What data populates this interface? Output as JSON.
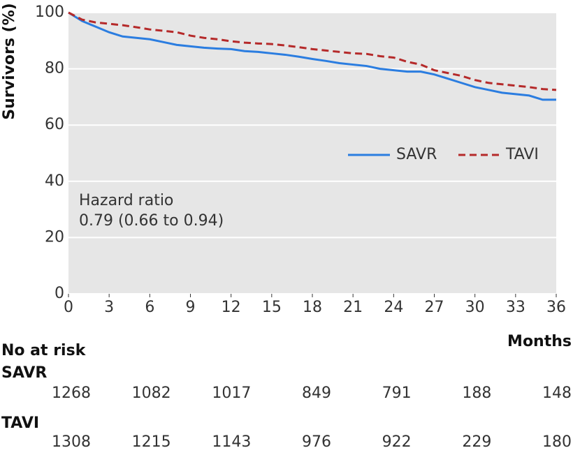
{
  "chart_data": {
    "type": "line",
    "ylabel": "Survivors (%)",
    "xlabel": "Months",
    "annotation": [
      "Hazard ratio",
      "0.79 (0.66 to 0.94)"
    ],
    "x": [
      0,
      1,
      2,
      3,
      4,
      5,
      6,
      7,
      8,
      9,
      10,
      11,
      12,
      13,
      14,
      15,
      16,
      17,
      18,
      19,
      20,
      21,
      22,
      23,
      24,
      25,
      26,
      27,
      28,
      29,
      30,
      31,
      32,
      33,
      34,
      35,
      36
    ],
    "series": [
      {
        "name": "SAVR",
        "color": "#2b7de0",
        "dash": false,
        "values": [
          100,
          97,
          95,
          93,
          91.5,
          91,
          90.5,
          89.5,
          88.5,
          88,
          87.5,
          87.2,
          87,
          86.3,
          86,
          85.5,
          85,
          84.3,
          83.5,
          82.8,
          82,
          81.5,
          81,
          80,
          79.5,
          79,
          79,
          78,
          76.5,
          75,
          73.5,
          72.5,
          71.5,
          71,
          70.5,
          69,
          69
        ]
      },
      {
        "name": "TAVI",
        "color": "#b52a2a",
        "dash": true,
        "values": [
          100,
          97.5,
          96.5,
          96,
          95.5,
          94.8,
          94,
          93.5,
          93,
          91.8,
          91,
          90.5,
          89.8,
          89.3,
          89,
          88.8,
          88.3,
          87.7,
          87,
          86.5,
          86,
          85.5,
          85.3,
          84.5,
          84,
          82.5,
          81.5,
          79.5,
          78.5,
          77.5,
          76,
          75,
          74.5,
          74,
          73.5,
          72.8,
          72.5
        ]
      }
    ],
    "xlim": [
      0,
      36
    ],
    "xticks": [
      0,
      3,
      6,
      9,
      12,
      15,
      18,
      21,
      24,
      27,
      30,
      33,
      36
    ],
    "ylim": [
      0,
      100
    ],
    "yticks": [
      0,
      20,
      40,
      60,
      80,
      100
    ],
    "grid": true,
    "risk_table": {
      "title": "No at risk",
      "rows": [
        {
          "name": "SAVR",
          "values": [
            1268,
            1082,
            1017,
            849,
            791,
            188,
            148
          ]
        },
        {
          "name": "TAVI",
          "values": [
            1308,
            1215,
            1143,
            976,
            922,
            229,
            180
          ]
        }
      ]
    }
  }
}
